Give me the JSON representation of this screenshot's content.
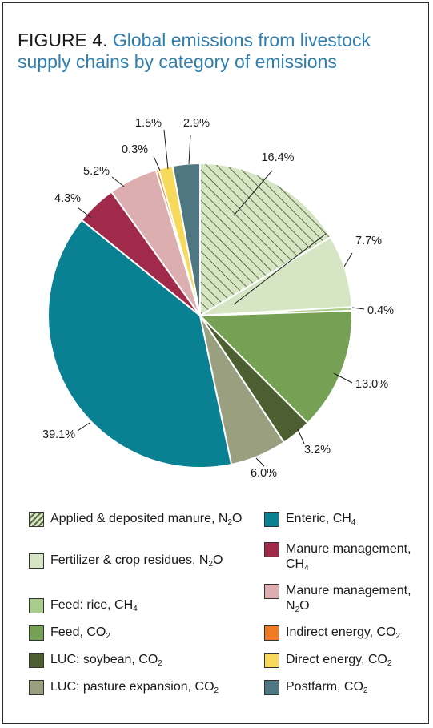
{
  "figure": {
    "label": "FIGURE 4.",
    "title": "Global emissions from livestock supply chains by category of emissions"
  },
  "colors": {
    "title_blue": "#2f7fb0",
    "border": "#2b2b2b"
  },
  "chart_data": {
    "type": "pie",
    "start": "12 o'clock",
    "direction": "clockwise",
    "slices": [
      {
        "name": "Applied & deposited manure, N2O",
        "value": 16.4,
        "label": "16.4%",
        "color": "#d6e5c4",
        "pattern": "hatched"
      },
      {
        "name": "Fertilizer & crop residues, N2O",
        "value": 7.7,
        "label": "7.7%",
        "color": "#d6e5c4"
      },
      {
        "name": "Feed: rice, CH4",
        "value": 0.4,
        "label": "0.4%",
        "color": "#a9cc8c"
      },
      {
        "name": "Feed, CO2",
        "value": 13.0,
        "label": "13.0%",
        "color": "#76a155"
      },
      {
        "name": "LUC: soybean, CO2",
        "value": 3.2,
        "label": "3.2%",
        "color": "#4d5e30"
      },
      {
        "name": "LUC: pasture expansion, CO2",
        "value": 6.0,
        "label": "6.0%",
        "color": "#9a9f7f"
      },
      {
        "name": "Enteric, CH4",
        "value": 39.1,
        "label": "39.1%",
        "color": "#0a8193"
      },
      {
        "name": "Manure management, CH4",
        "value": 4.3,
        "label": "4.3%",
        "color": "#a12a4b"
      },
      {
        "name": "Manure management, N2O",
        "value": 5.2,
        "label": "5.2%",
        "color": "#dcaeb0"
      },
      {
        "name": "Indirect energy, CO2",
        "value": 0.3,
        "label": "0.3%",
        "color": "#ee7a25"
      },
      {
        "name": "Direct energy, CO2",
        "value": 1.5,
        "label": "1.5%",
        "color": "#f7d95c"
      },
      {
        "name": "Postfarm, CO2",
        "value": 2.9,
        "label": "2.9%",
        "color": "#4f7781"
      }
    ]
  },
  "legend": {
    "left": [
      {
        "text": "Applied & deposited manure, N",
        "sub": "2",
        "tail": "O",
        "color": "#d6e5c4",
        "pattern": "hatched"
      },
      {
        "text": "Fertilizer & crop residues, N",
        "sub": "2",
        "tail": "O",
        "color": "#d6e5c4"
      },
      {
        "text": "Feed: rice, CH",
        "sub": "4",
        "tail": "",
        "color": "#a9cc8c"
      },
      {
        "text": "Feed, CO",
        "sub": "2",
        "tail": "",
        "color": "#76a155"
      },
      {
        "text": "LUC: soybean, CO",
        "sub": "2",
        "tail": "",
        "color": "#4d5e30"
      },
      {
        "text": "LUC: pasture expansion, CO",
        "sub": "2",
        "tail": "",
        "color": "#9a9f7f"
      }
    ],
    "right": [
      {
        "text": "Enteric, CH",
        "sub": "4",
        "tail": "",
        "color": "#0a8193"
      },
      {
        "text": "Manure management, CH",
        "sub": "4",
        "tail": "",
        "color": "#a12a4b"
      },
      {
        "text": "Manure management, N",
        "sub": "2",
        "tail": "O",
        "color": "#dcaeb0"
      },
      {
        "text": "Indirect energy, CO",
        "sub": "2",
        "tail": "",
        "color": "#ee7a25"
      },
      {
        "text": "Direct energy, CO",
        "sub": "2",
        "tail": "",
        "color": "#f7d95c"
      },
      {
        "text": "Postfarm, CO",
        "sub": "2",
        "tail": "",
        "color": "#4f7781"
      }
    ]
  }
}
